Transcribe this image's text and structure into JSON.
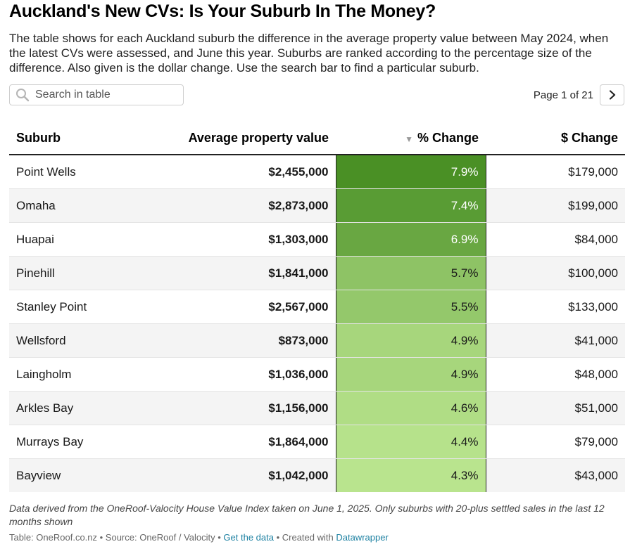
{
  "title": "Auckland's New CVs: Is Your Suburb In The Money?",
  "intro": "The table shows for each Auckland suburb the difference in the average property value between May 2024, when the latest CVs were assessed, and June this year. Suburbs are ranked according to the percentage size of the difference. Also given is the dollar change. Use the search bar to find a particular suburb.",
  "search": {
    "placeholder": "Search in table",
    "value": "",
    "icon": "search-icon"
  },
  "pagination": {
    "label": "Page 1 of 21",
    "next_icon": "chevron-right-icon"
  },
  "table": {
    "columns": [
      "Suburb",
      "Average property value",
      "% Change",
      "$ Change"
    ],
    "sort_indicator": "▼",
    "sorted_column": "% Change",
    "rows": [
      {
        "suburb": "Point Wells",
        "avg": "$2,455,000",
        "pct": "7.9%",
        "usd": "$179,000",
        "pct_value": 7.9
      },
      {
        "suburb": "Omaha",
        "avg": "$2,873,000",
        "pct": "7.4%",
        "usd": "$199,000",
        "pct_value": 7.4
      },
      {
        "suburb": "Huapai",
        "avg": "$1,303,000",
        "pct": "6.9%",
        "usd": "$84,000",
        "pct_value": 6.9
      },
      {
        "suburb": "Pinehill",
        "avg": "$1,841,000",
        "pct": "5.7%",
        "usd": "$100,000",
        "pct_value": 5.7
      },
      {
        "suburb": "Stanley Point",
        "avg": "$2,567,000",
        "pct": "5.5%",
        "usd": "$133,000",
        "pct_value": 5.5
      },
      {
        "suburb": "Wellsford",
        "avg": "$873,000",
        "pct": "4.9%",
        "usd": "$41,000",
        "pct_value": 4.9
      },
      {
        "suburb": "Laingholm",
        "avg": "$1,036,000",
        "pct": "4.9%",
        "usd": "$48,000",
        "pct_value": 4.9
      },
      {
        "suburb": "Arkles Bay",
        "avg": "$1,156,000",
        "pct": "4.6%",
        "usd": "$51,000",
        "pct_value": 4.6
      },
      {
        "suburb": "Murrays Bay",
        "avg": "$1,864,000",
        "pct": "4.4%",
        "usd": "$79,000",
        "pct_value": 4.4
      },
      {
        "suburb": "Bayview",
        "avg": "$1,042,000",
        "pct": "4.3%",
        "usd": "$43,000",
        "pct_value": 4.3
      }
    ]
  },
  "notes": "Data derived from the OneRoof-Valocity House Value Index taken on June 1, 2025. Only suburbs with 20-plus settled sales in the last 12 months shown",
  "footer": {
    "prefix": "Table: OneRoof.co.nz • Source: OneRoof / Valocity • ",
    "get_data": "Get the data",
    "middle": " • Created with ",
    "datawrapper": "Datawrapper"
  },
  "colors": {
    "heat_high": "#4a9025",
    "heat_low": "#b9e48e",
    "link": "#1d81a2"
  }
}
